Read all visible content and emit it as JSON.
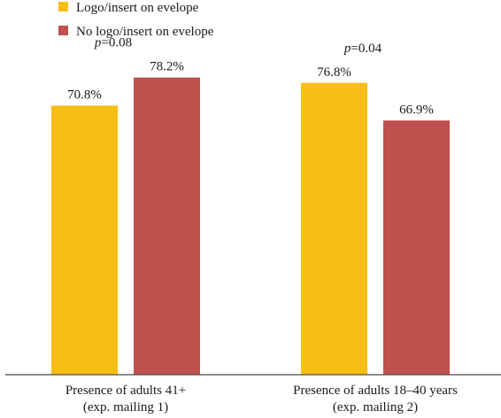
{
  "chart_data": {
    "type": "bar",
    "title": "",
    "xlabel": "",
    "ylabel": "",
    "ylim": [
      0,
      85
    ],
    "grid": false,
    "legend_position": "top-left",
    "categories": [
      [
        "Presence of adults 41+",
        "(exp. mailing 1)"
      ],
      [
        "Presence of adults 18–40 years",
        "(exp. mailing 2)"
      ]
    ],
    "series": [
      {
        "name": "Logo/insert on evelope",
        "color": "#F9BE14",
        "values": [
          70.8,
          76.8
        ],
        "labels": [
          "70.8%",
          "76.8%"
        ]
      },
      {
        "name": "No logo/insert on evelope",
        "color": "#C0504D",
        "values": [
          78.2,
          66.9
        ],
        "labels": [
          "78.2%",
          "66.9%"
        ]
      }
    ],
    "annotations": [
      {
        "group": 0,
        "italic": "p",
        "rest": "=0.08"
      },
      {
        "group": 1,
        "italic": "p",
        "rest": "=0.04"
      }
    ]
  }
}
